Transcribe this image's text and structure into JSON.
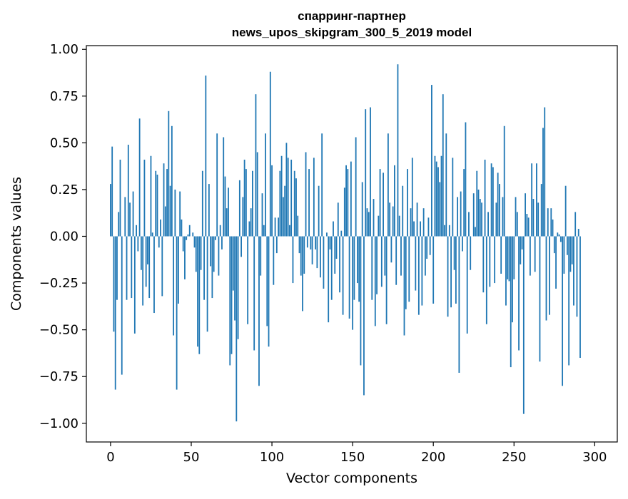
{
  "chart_data": {
    "type": "bar",
    "title": "спарринг-партнер",
    "subtitle": "news_upos_skipgram_300_5_2019 model",
    "xlabel": "Vector components",
    "ylabel": "Components values",
    "xlim": [
      -15,
      314
    ],
    "ylim": [
      -1.1,
      1.02
    ],
    "xticks": [
      0,
      50,
      100,
      150,
      200,
      250,
      300
    ],
    "xtick_labels": [
      "0",
      "50",
      "100",
      "150",
      "200",
      "250",
      "300"
    ],
    "yticks": [
      1.0,
      0.75,
      0.5,
      0.25,
      0.0,
      -0.25,
      -0.5,
      -0.75,
      -1.0
    ],
    "ytick_labels": [
      "1.00",
      "0.75",
      "0.50",
      "0.25",
      "0.00",
      "−0.25",
      "−0.50",
      "−0.75",
      "−1.00"
    ],
    "bar_color": "#1f77b4",
    "grid": false,
    "x": "0..299 (component index)",
    "values": [
      0.28,
      0.48,
      -0.51,
      -0.82,
      -0.34,
      0.13,
      0.41,
      -0.74,
      0.0,
      0.21,
      -0.34,
      0.49,
      0.18,
      -0.33,
      0.24,
      -0.52,
      0.06,
      -0.08,
      0.63,
      -0.18,
      -0.37,
      0.41,
      -0.27,
      -0.15,
      -0.33,
      0.43,
      0.02,
      -0.41,
      0.35,
      0.33,
      -0.06,
      0.09,
      -0.32,
      0.39,
      0.16,
      0.36,
      0.67,
      0.27,
      0.59,
      -0.53,
      0.25,
      -0.82,
      -0.36,
      0.24,
      0.09,
      -0.08,
      -0.23,
      -0.02,
      0.01,
      0.06,
      0.0,
      0.02,
      -0.06,
      -0.19,
      -0.59,
      -0.63,
      -0.18,
      0.35,
      -0.34,
      0.86,
      -0.51,
      0.28,
      -0.16,
      -0.33,
      -0.19,
      -0.02,
      0.55,
      -0.21,
      0.06,
      -0.07,
      0.53,
      0.32,
      0.15,
      0.26,
      -0.69,
      -0.63,
      -0.29,
      -0.45,
      -0.99,
      -0.55,
      0.3,
      -0.11,
      0.21,
      0.41,
      0.36,
      -0.47,
      0.08,
      0.15,
      0.35,
      -0.61,
      0.76,
      0.45,
      -0.8,
      -0.21,
      0.23,
      0.06,
      0.55,
      -0.48,
      -0.59,
      0.88,
      0.38,
      -0.26,
      0.1,
      -0.09,
      0.1,
      0.35,
      0.43,
      0.21,
      0.27,
      0.5,
      0.42,
      0.06,
      0.41,
      -0.25,
      0.35,
      0.31,
      0.11,
      -0.09,
      -0.21,
      -0.4,
      -0.2,
      0.45,
      -0.06,
      0.36,
      -0.07,
      -0.15,
      0.42,
      -0.07,
      -0.17,
      0.27,
      -0.22,
      0.55,
      -0.28,
      0.0,
      0.02,
      -0.46,
      -0.07,
      -0.34,
      0.08,
      -0.2,
      -0.12,
      0.18,
      -0.3,
      0.03,
      -0.42,
      0.26,
      0.38,
      0.36,
      -0.44,
      0.4,
      -0.5,
      -0.34,
      0.53,
      -0.25,
      -0.35,
      -0.69,
      0.29,
      -0.85,
      0.68,
      0.15,
      0.13,
      0.69,
      -0.34,
      0.2,
      -0.48,
      -0.31,
      0.11,
      0.36,
      -0.27,
      0.34,
      -0.21,
      -0.47,
      0.55,
      0.18,
      -0.14,
      0.16,
      0.38,
      -0.26,
      0.92,
      0.11,
      -0.21,
      0.27,
      -0.53,
      -0.39,
      0.36,
      -0.35,
      0.15,
      0.42,
      0.08,
      -0.29,
      0.18,
      -0.42,
      0.08,
      -0.37,
      0.15,
      -0.21,
      -0.12,
      0.1,
      -0.1,
      0.81,
      -0.36,
      0.43,
      0.4,
      0.37,
      0.29,
      0.43,
      0.76,
      0.06,
      0.55,
      -0.43,
      0.06,
      -0.38,
      0.42,
      -0.18,
      -0.36,
      0.21,
      -0.73,
      0.24,
      -0.08,
      0.36,
      0.61,
      -0.52,
      0.13,
      -0.18,
      0.0,
      0.23,
      0.05,
      0.35,
      0.25,
      0.2,
      0.18,
      -0.3,
      0.41,
      -0.47,
      0.13,
      -0.27,
      0.39,
      0.37,
      -0.25,
      0.18,
      0.34,
      0.28,
      -0.2,
      0.21,
      0.59,
      -0.37,
      -0.23,
      -0.24,
      -0.7,
      -0.46,
      -0.23,
      0.21,
      0.13,
      -0.61,
      -0.15,
      -0.07,
      -0.95,
      0.23,
      0.12,
      0.1,
      -0.21,
      0.39,
      0.2,
      -0.19,
      0.39,
      0.18,
      -0.67,
      0.28,
      0.58,
      0.69,
      -0.45,
      0.15,
      -0.42,
      0.15,
      0.09,
      -0.09,
      -0.28,
      0.02,
      0.01,
      -0.03,
      -0.8,
      -0.2,
      0.27,
      -0.1,
      -0.69,
      -0.19,
      -0.15,
      -0.37,
      0.13,
      -0.43,
      0.04,
      -0.65
    ]
  }
}
